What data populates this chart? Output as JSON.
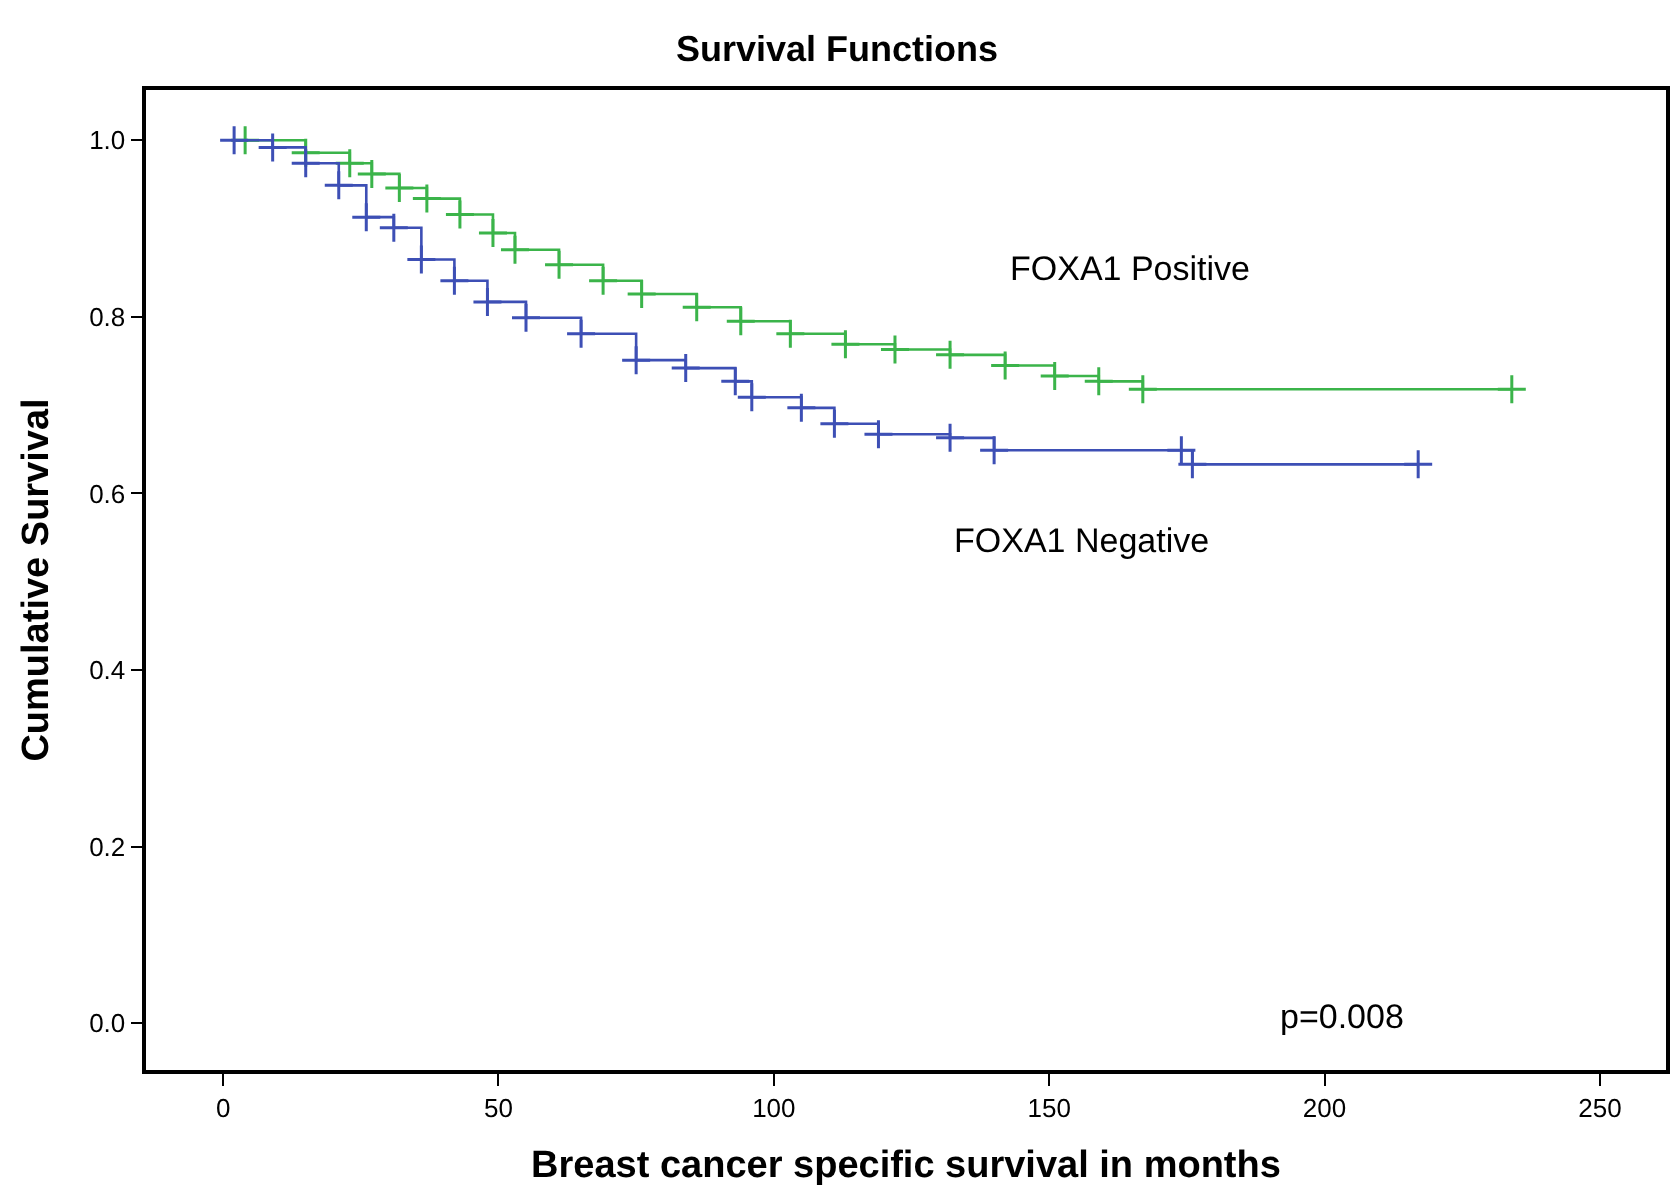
{
  "chart_data": {
    "type": "step",
    "title": "Survival Functions",
    "xlabel": "Breast cancer specific survival in months",
    "ylabel": "Cumulative Survival",
    "series": [
      {
        "name": "FOXA1 Positive",
        "color": "#3bb44a",
        "x": [
          4,
          15,
          23,
          27,
          32,
          37,
          43,
          49,
          53,
          61,
          69,
          76,
          86,
          94,
          103,
          113,
          122,
          132,
          142,
          151,
          159,
          167,
          234
        ],
        "values": [
          1.0,
          0.986,
          0.974,
          0.962,
          0.946,
          0.934,
          0.916,
          0.895,
          0.876,
          0.859,
          0.841,
          0.826,
          0.811,
          0.795,
          0.781,
          0.769,
          0.763,
          0.757,
          0.745,
          0.733,
          0.727,
          0.718,
          0.718
        ]
      },
      {
        "name": "FOXA1 Negative",
        "color": "#3d4fb5",
        "x": [
          2,
          9,
          15,
          21,
          26,
          31,
          36,
          42,
          48,
          55,
          65,
          75,
          84,
          93,
          96,
          105,
          111,
          119,
          132,
          140,
          174,
          176,
          217
        ],
        "values": [
          1.0,
          0.992,
          0.974,
          0.949,
          0.913,
          0.901,
          0.865,
          0.841,
          0.817,
          0.799,
          0.781,
          0.751,
          0.742,
          0.727,
          0.709,
          0.697,
          0.679,
          0.667,
          0.663,
          0.649,
          0.649,
          0.633,
          0.633
        ]
      }
    ],
    "annotations": [
      "p=0.008"
    ],
    "marker": "cross",
    "line_style": "solid",
    "legend": false,
    "xlim": [
      -14,
      262
    ],
    "ylim": [
      -0.053,
      1.057
    ],
    "xticks": [
      0,
      50,
      100,
      150,
      200,
      250
    ],
    "yticks": [
      {
        "value": 0,
        "label": "0.0"
      },
      {
        "value": 0.2,
        "label": "0.2"
      },
      {
        "value": 0.4,
        "label": "0.4"
      },
      {
        "value": 0.6,
        "label": "0.6"
      },
      {
        "value": 0.8,
        "label": "0.8"
      },
      {
        "value": 1,
        "label": "1.0"
      }
    ]
  }
}
